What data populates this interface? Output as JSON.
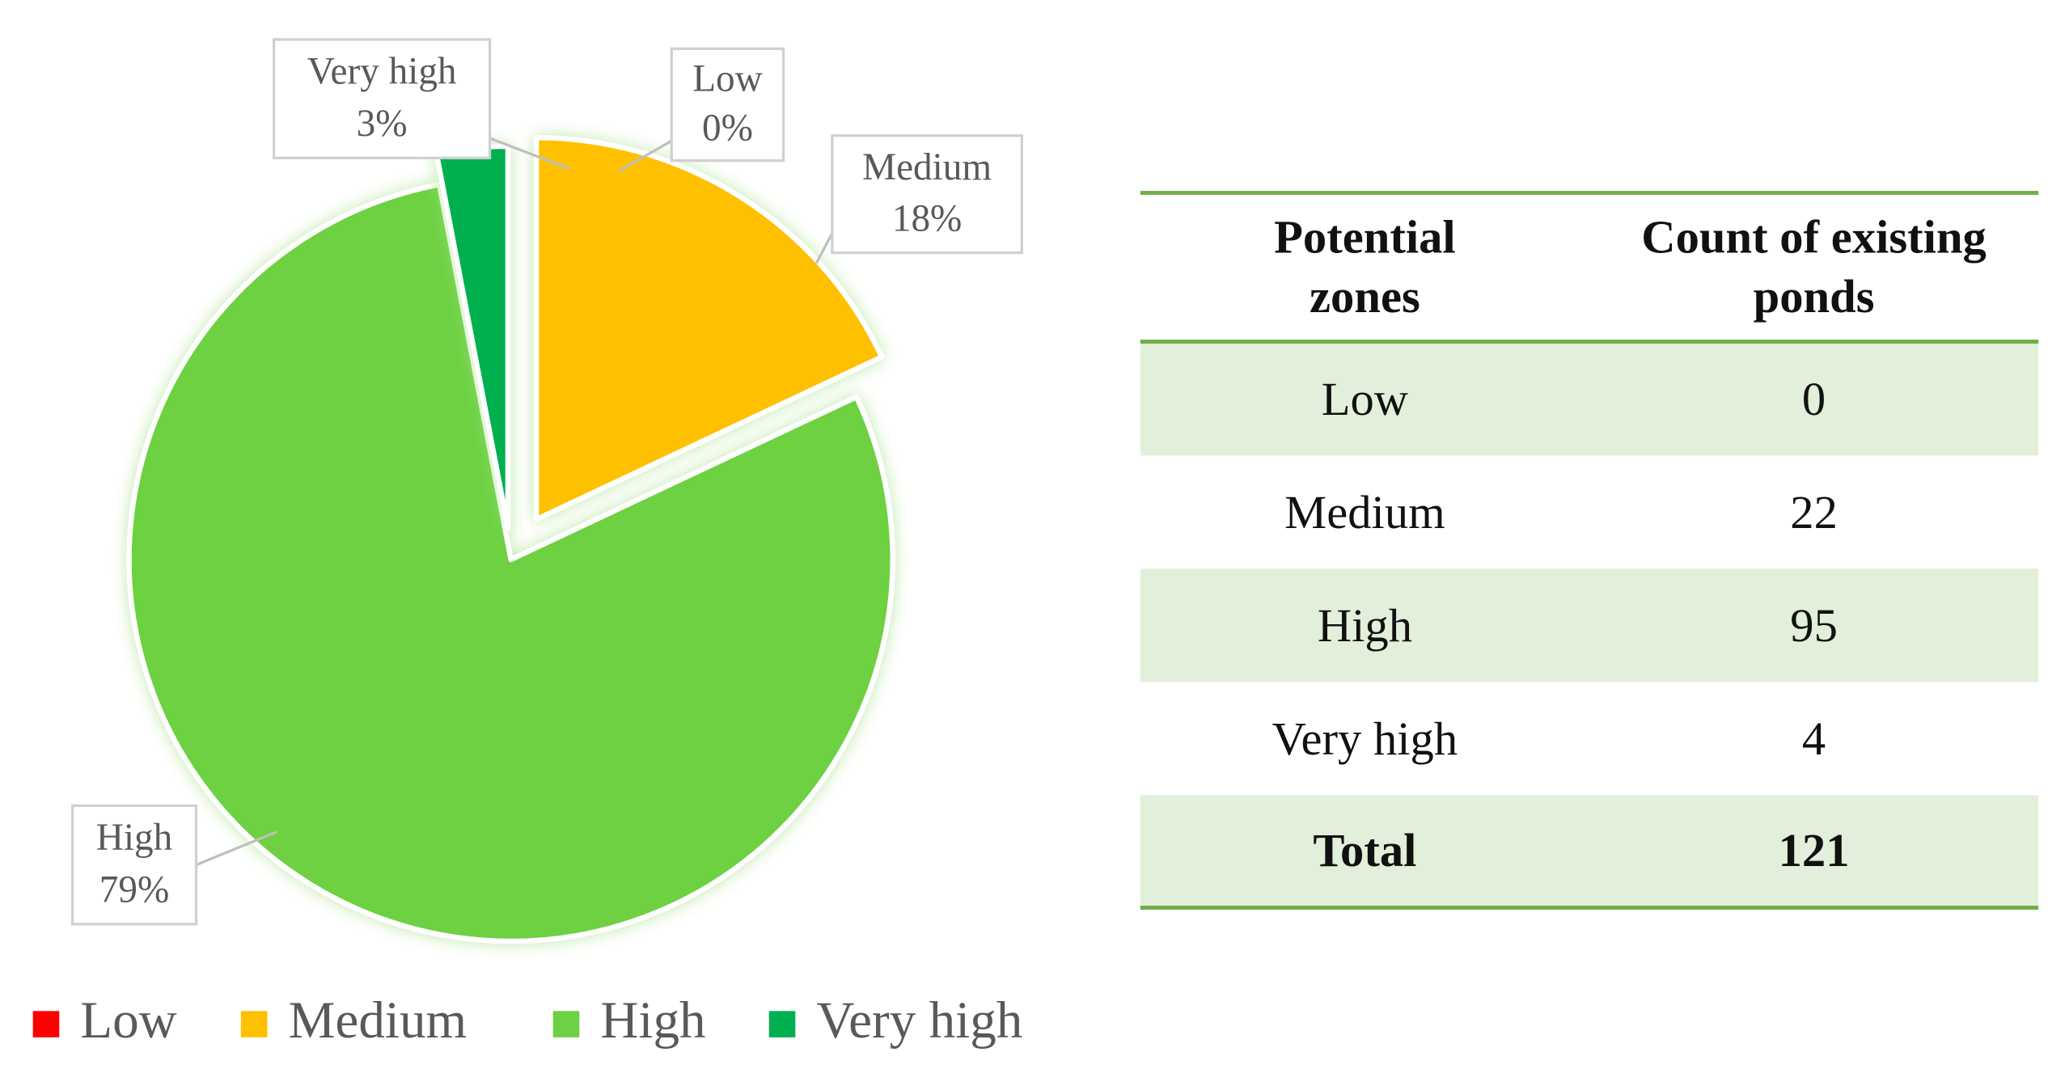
{
  "chart_data": {
    "type": "pie",
    "categories": [
      "Low",
      "Medium",
      "High",
      "Very high"
    ],
    "values": [
      0,
      18,
      79,
      3
    ],
    "value_labels": [
      "0%",
      "18%",
      "79%",
      "3%"
    ],
    "colors": [
      "#ff0000",
      "#ffc000",
      "#6dd143",
      "#00b050"
    ],
    "legend": "bottom"
  },
  "table": {
    "columns": [
      "Potential zones",
      "Count of existing ponds"
    ],
    "rows": [
      [
        "Low",
        0
      ],
      [
        "Medium",
        22
      ],
      [
        "High",
        95
      ],
      [
        "Very high",
        4
      ]
    ],
    "total": [
      "Total",
      121
    ]
  }
}
